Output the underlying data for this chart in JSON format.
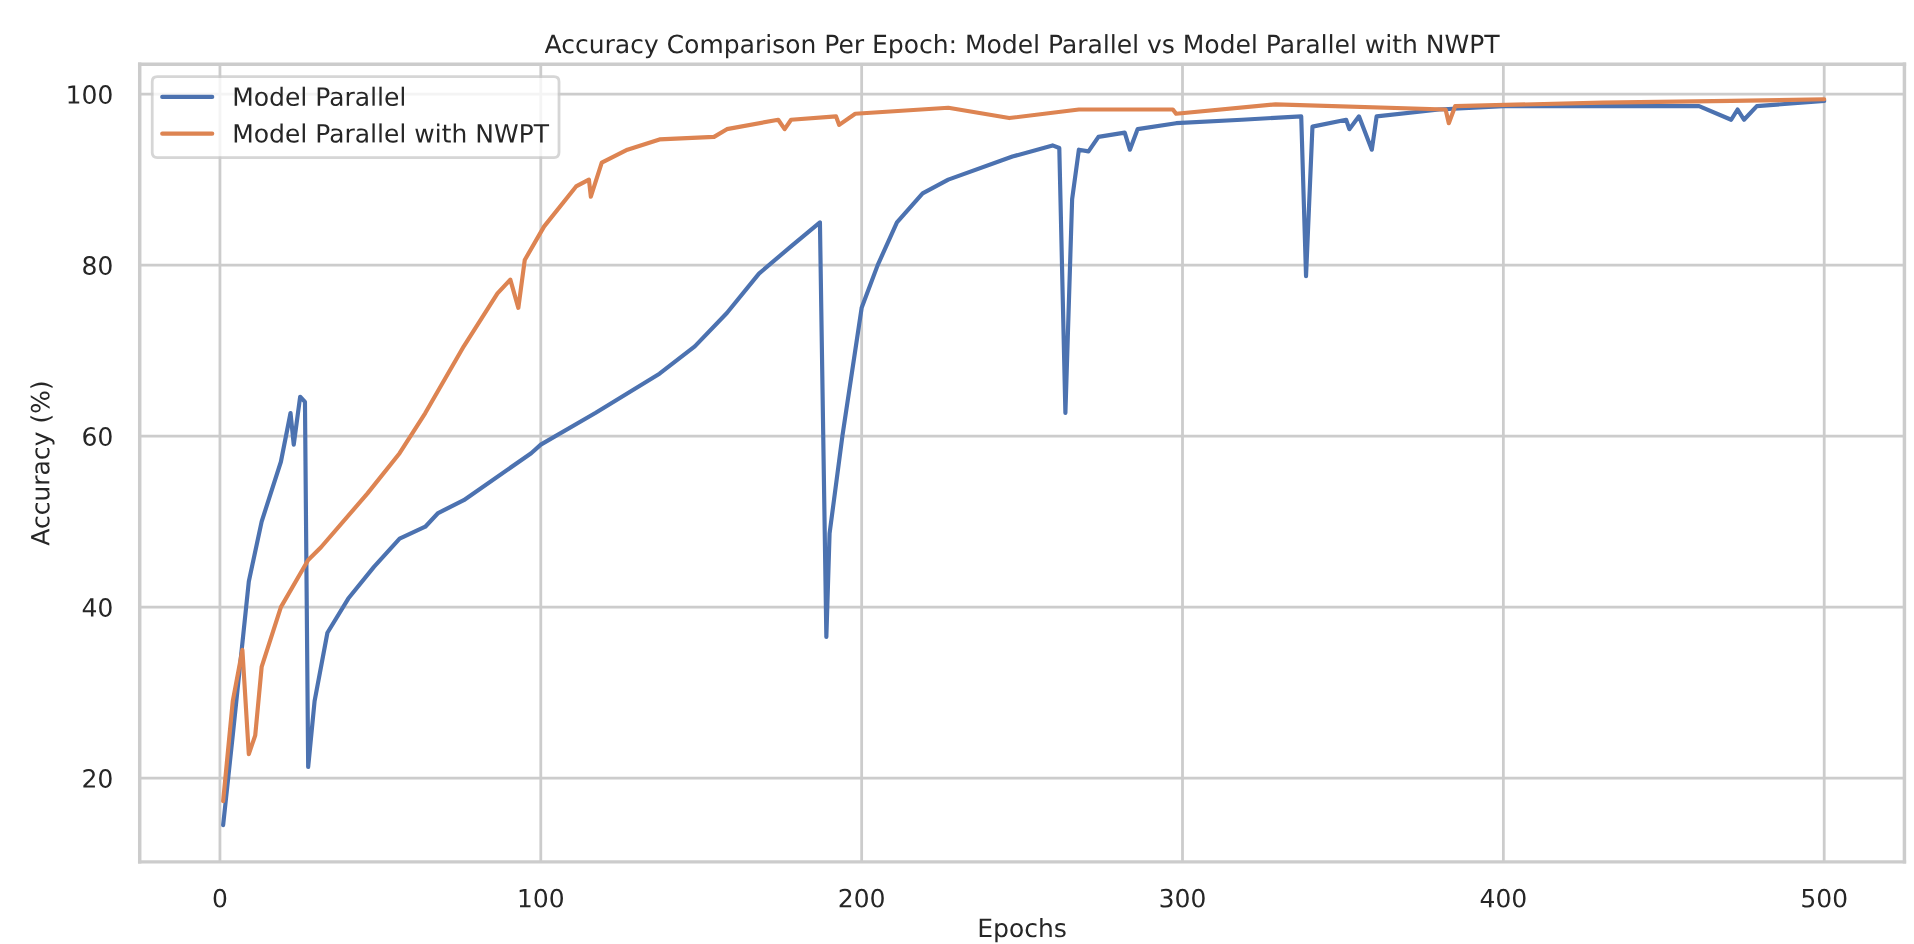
{
  "chart_data": {
    "type": "line",
    "title": "Accuracy Comparison Per Epoch: Model Parallel vs Model Parallel with NWPT",
    "xlabel": "Epochs",
    "ylabel": "Accuracy (%)",
    "xlim": [
      -25,
      525
    ],
    "xticks": [
      0,
      100,
      200,
      300,
      400,
      500
    ],
    "ylim": [
      10.2,
      103.5
    ],
    "yticks": [
      20,
      40,
      60,
      80,
      100
    ],
    "grid": true,
    "legend": "top left",
    "series": [
      {
        "name": "Model Parallel",
        "color": "#4c72b0",
        "x": [
          1,
          4,
          9,
          13,
          19,
          22,
          23,
          25,
          26.5,
          27.5,
          29.5,
          33.5,
          40,
          48,
          56,
          64,
          68,
          76,
          97,
          100,
          117,
          137,
          148,
          158,
          168,
          178,
          187,
          189,
          190,
          194,
          200,
          205,
          211,
          219,
          227,
          247,
          259.5,
          261.6,
          263.5,
          265.6,
          267.7,
          270.7,
          273.8,
          282,
          283.6,
          286,
          298,
          318.5,
          337,
          338.5,
          340.5,
          351,
          352,
          355,
          359,
          360.5,
          380,
          400,
          431,
          461,
          471,
          473,
          475,
          479,
          500
        ],
        "values": [
          14.5,
          25,
          43,
          50,
          57,
          62.7,
          59,
          64.6,
          64,
          21.3,
          29,
          37,
          41,
          44.7,
          48,
          49.4,
          51,
          52.5,
          58,
          59,
          62.7,
          67.3,
          70.5,
          74.4,
          79,
          82.2,
          85,
          36.5,
          48.6,
          60,
          75,
          80,
          85,
          88.4,
          90,
          92.7,
          94,
          93.7,
          62.7,
          87.7,
          93.5,
          93.3,
          95,
          95.5,
          93.5,
          95.9,
          96.6,
          97,
          97.4,
          78.7,
          96.2,
          97,
          95.9,
          97.4,
          93.5,
          97.4,
          98.2,
          98.6,
          98.6,
          98.6,
          97,
          98.2,
          97,
          98.6,
          99.2
        ]
      },
      {
        "name": "Model Parallel with NWPT",
        "color": "#dd8452",
        "x": [
          1,
          4,
          7,
          9,
          11,
          13,
          19,
          27.5,
          31.5,
          46,
          56,
          64,
          76,
          86.5,
          90.5,
          93,
          95,
          101,
          111,
          115,
          115.6,
          119,
          127,
          137,
          154,
          158,
          174,
          176,
          178,
          192,
          193,
          198,
          227,
          246,
          267.7,
          297,
          298,
          329,
          382,
          383,
          385,
          431,
          471,
          500
        ],
        "values": [
          17.3,
          29,
          35,
          22.8,
          25,
          33,
          40,
          45.5,
          47,
          53.3,
          58,
          62.7,
          70.5,
          76.7,
          78.3,
          75,
          80.6,
          84.5,
          89.2,
          90,
          88,
          92,
          93.5,
          94.7,
          95,
          95.9,
          97,
          95.9,
          97,
          97.4,
          96.4,
          97.7,
          98.4,
          97.2,
          98.2,
          98.2,
          97.7,
          98.8,
          98.2,
          96.6,
          98.6,
          99,
          99.2,
          99.4
        ]
      }
    ]
  }
}
